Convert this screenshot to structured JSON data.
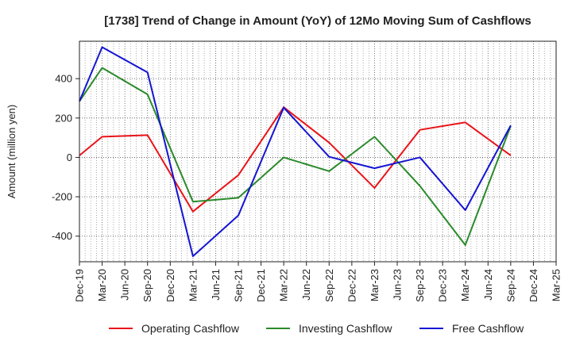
{
  "chart_data": {
    "type": "line",
    "title": "[1738]  Trend of Change in Amount (YoY) of 12Mo Moving Sum of Cashflows",
    "xlabel": "",
    "ylabel": "Amount (million yen)",
    "ylim": [
      -530,
      590
    ],
    "yticks": [
      -400,
      -200,
      0,
      200,
      400
    ],
    "ytick_labels": [
      "-400",
      "-200",
      "0",
      "200",
      "400"
    ],
    "categories": [
      "Dec-19",
      "Mar-20",
      "Jun-20",
      "Sep-20",
      "Dec-20",
      "Mar-21",
      "Jun-21",
      "Sep-21",
      "Dec-21",
      "Mar-22",
      "Jun-22",
      "Sep-22",
      "Dec-22",
      "Mar-23",
      "Jun-23",
      "Sep-23",
      "Dec-23",
      "Mar-24",
      "Jun-24",
      "Sep-24",
      "Dec-24",
      "Mar-25"
    ],
    "grid": true,
    "legend_position": "bottom",
    "series": [
      {
        "name": "Operating Cashflow",
        "color": "#e8141a",
        "values": [
          10,
          105,
          null,
          113,
          null,
          -275,
          null,
          -90,
          null,
          255,
          null,
          75,
          null,
          -155,
          null,
          140,
          null,
          178,
          null,
          10,
          null,
          null
        ]
      },
      {
        "name": "Investing Cashflow",
        "color": "#2a8a2a",
        "values": [
          285,
          455,
          null,
          320,
          null,
          -225,
          null,
          -205,
          null,
          0,
          null,
          -70,
          null,
          105,
          null,
          -145,
          null,
          -445,
          null,
          160,
          null,
          null
        ]
      },
      {
        "name": "Free Cashflow",
        "color": "#1414d2",
        "values": [
          285,
          560,
          null,
          432,
          null,
          -502,
          null,
          -295,
          null,
          253,
          null,
          3,
          null,
          -55,
          null,
          0,
          null,
          -268,
          null,
          162,
          null,
          null
        ]
      }
    ]
  }
}
